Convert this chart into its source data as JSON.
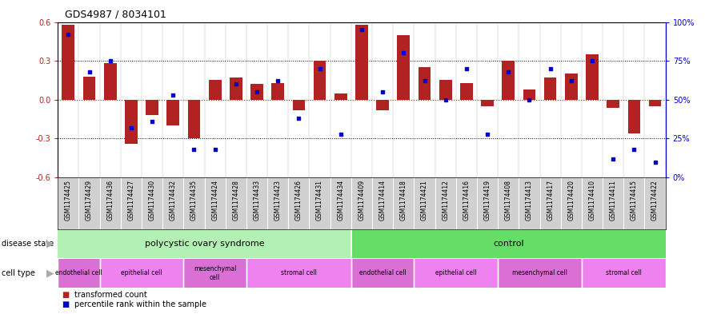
{
  "title": "GDS4987 / 8034101",
  "samples": [
    "GSM1174425",
    "GSM1174429",
    "GSM1174436",
    "GSM1174427",
    "GSM1174430",
    "GSM1174432",
    "GSM1174435",
    "GSM1174424",
    "GSM1174428",
    "GSM1174433",
    "GSM1174423",
    "GSM1174426",
    "GSM1174431",
    "GSM1174434",
    "GSM1174409",
    "GSM1174414",
    "GSM1174418",
    "GSM1174421",
    "GSM1174412",
    "GSM1174416",
    "GSM1174419",
    "GSM1174408",
    "GSM1174413",
    "GSM1174417",
    "GSM1174420",
    "GSM1174410",
    "GSM1174411",
    "GSM1174415",
    "GSM1174422"
  ],
  "bar_values": [
    0.58,
    0.18,
    0.28,
    -0.34,
    -0.12,
    -0.2,
    -0.3,
    0.15,
    0.17,
    0.12,
    0.13,
    -0.08,
    0.3,
    0.05,
    0.58,
    -0.08,
    0.5,
    0.25,
    0.15,
    0.13,
    -0.05,
    0.3,
    0.08,
    0.17,
    0.2,
    0.35,
    -0.06,
    -0.26,
    -0.05
  ],
  "blue_pct": [
    92,
    68,
    75,
    32,
    36,
    53,
    18,
    18,
    60,
    55,
    62,
    38,
    70,
    28,
    95,
    55,
    80,
    62,
    50,
    70,
    28,
    68,
    50,
    70,
    62,
    75,
    12,
    18,
    10
  ],
  "bar_color": "#b22222",
  "blue_color": "#0000cd",
  "ylim": [
    -0.6,
    0.6
  ],
  "y2lim": [
    0,
    100
  ],
  "yticks_left": [
    -0.6,
    -0.3,
    0.0,
    0.3,
    0.6
  ],
  "yticks_right": [
    0,
    25,
    50,
    75,
    100
  ],
  "pcos_color": "#b3f0b3",
  "ctrl_color": "#66dd66",
  "cell_colors": [
    "#da70d6",
    "#ee82ee"
  ],
  "cell_groups": [
    {
      "label": "endothelial cell",
      "start": 0,
      "end": 2,
      "cidx": 0
    },
    {
      "label": "epithelial cell",
      "start": 2,
      "end": 6,
      "cidx": 1
    },
    {
      "label": "mesenchymal\ncell",
      "start": 6,
      "end": 9,
      "cidx": 0
    },
    {
      "label": "stromal cell",
      "start": 9,
      "end": 14,
      "cidx": 1
    },
    {
      "label": "endothelial cell",
      "start": 14,
      "end": 17,
      "cidx": 0
    },
    {
      "label": "epithelial cell",
      "start": 17,
      "end": 21,
      "cidx": 1
    },
    {
      "label": "mesenchymal cell",
      "start": 21,
      "end": 25,
      "cidx": 0
    },
    {
      "label": "stromal cell",
      "start": 25,
      "end": 29,
      "cidx": 1
    }
  ],
  "xtick_bg": "#d0d0d0",
  "chart_bg": "#ffffff",
  "fig_bg": "#ffffff"
}
